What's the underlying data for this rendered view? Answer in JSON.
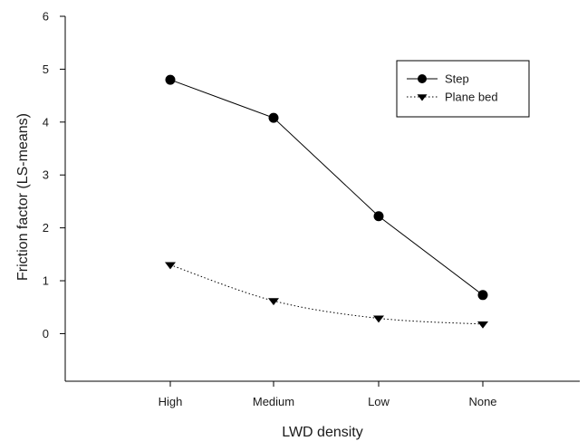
{
  "chart_data": {
    "type": "line",
    "categories": [
      "High",
      "Medium",
      "Low",
      "None"
    ],
    "xlabel": "LWD density",
    "ylabel": "Friction factor (LS-means)",
    "ylim": [
      -0.9,
      6
    ],
    "yticks": [
      0,
      1,
      2,
      3,
      4,
      5,
      6
    ],
    "grid": false,
    "legend_position": "top-right",
    "series": [
      {
        "name": "Step",
        "values": [
          4.8,
          4.08,
          2.22,
          0.73
        ],
        "line_style": "solid",
        "marker": "circle",
        "color": "#000000"
      },
      {
        "name": "Plane bed",
        "values": [
          1.3,
          0.62,
          0.29,
          0.18
        ],
        "line_style": "dotted",
        "marker": "triangle-down",
        "color": "#000000"
      }
    ]
  }
}
